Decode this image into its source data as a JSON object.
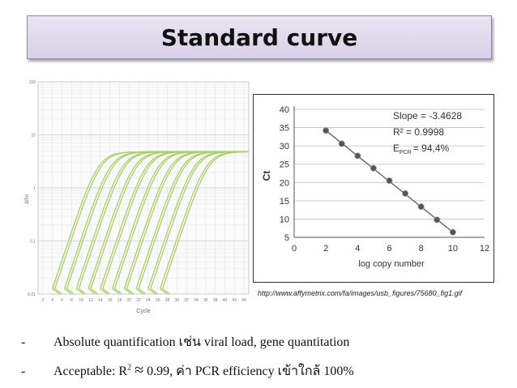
{
  "title": "Standard curve",
  "left_chart": {
    "y_ticks": [
      "100",
      "10",
      "1",
      "0.1",
      "0.01"
    ],
    "y_label": "ΔRn",
    "x_ticks": [
      "2",
      "4",
      "6",
      "8",
      "10",
      "12",
      "14",
      "16",
      "18",
      "20",
      "22",
      "24",
      "26",
      "28",
      "30",
      "32",
      "34",
      "36",
      "38",
      "40",
      "42",
      "44"
    ],
    "x_label": "Cycle",
    "curve_color": "#a9cf6a"
  },
  "chart_data": {
    "type": "scatter",
    "x": [
      2,
      3,
      4,
      5,
      6,
      7,
      8,
      9,
      10
    ],
    "y": [
      34.2,
      30.6,
      27.3,
      23.9,
      20.5,
      17.0,
      13.4,
      9.8,
      6.4
    ],
    "xlabel": "log copy number",
    "ylabel": "Ct",
    "xlim": [
      0,
      12
    ],
    "ylim": [
      5,
      40
    ],
    "x_ticks": [
      "0",
      "2",
      "4",
      "6",
      "8",
      "10",
      "12"
    ],
    "y_ticks": [
      "5",
      "10",
      "15",
      "20",
      "25",
      "30",
      "35",
      "40"
    ],
    "annotations": [
      "Slope = -3.4628",
      "R² = 0.9998",
      "E",
      "PCR",
      "= 94,4%"
    ],
    "grid": true,
    "marker_color": "#555555",
    "line_color": "#666666"
  },
  "source_url": "http://www.affymetrix.com/fa/images/usb_figures/75680_fig1.gif",
  "bullets": [
    {
      "dash": "-",
      "text": "Absolute quantification เช่น viral load, gene quantitation"
    },
    {
      "dash": "-",
      "prefix": "Acceptable: R",
      "sup": "2",
      "approx": "≈",
      "suffix": " 0.99, ค่า PCR efficiency เข้าใกล้ 100%"
    }
  ]
}
